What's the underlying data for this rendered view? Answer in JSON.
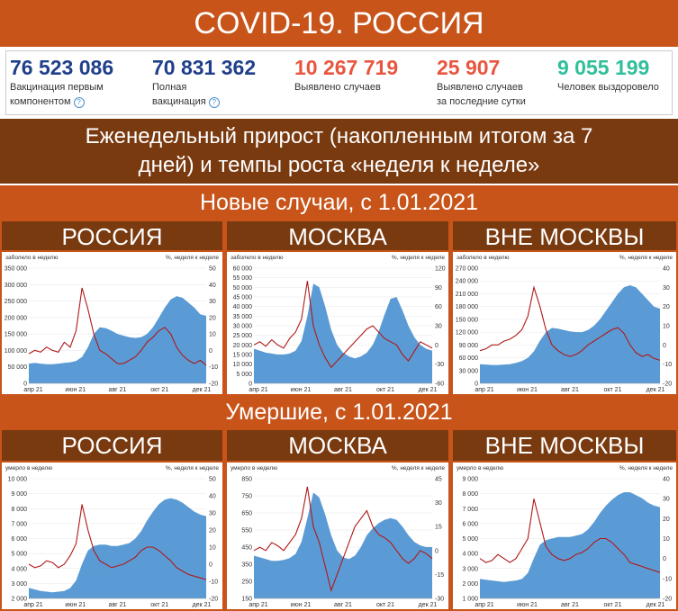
{
  "title": "COVID-19. РОССИЯ",
  "stats": [
    {
      "value": "76 523 086",
      "label1": "Вакцинация первым",
      "label2": "компонентом",
      "help": true,
      "color": "#1f3f8a"
    },
    {
      "value": "70 831 362",
      "label1": "Полная",
      "label2": "вакцинация",
      "help": true,
      "color": "#1f3f8a"
    },
    {
      "value": "10 267 719",
      "label1": "Выявлено случаев",
      "label2": "",
      "help": false,
      "color": "#e8563f"
    },
    {
      "value": "25 907",
      "label1": "Выявлено случаев",
      "label2": "за последние сутки",
      "help": false,
      "color": "#e8563f"
    },
    {
      "value": "9 055 199",
      "label1": "Человек выздоровело",
      "label2": "",
      "help": false,
      "color": "#2fbf9a"
    }
  ],
  "weekly_title_line1": "Еженедельный прирост (накопленным итогом за 7",
  "weekly_title_line2": "дней) и темпы роста «неделя к неделе»",
  "cases_title": "Новые случаи, с 1.01.2021",
  "deaths_title": "Умершие, с 1.01.2021",
  "region_labels": [
    "РОССИЯ",
    "МОСКВА",
    "ВНЕ МОСКВЫ"
  ],
  "colors": {
    "orange": "#c8541a",
    "brown": "#7a3a10",
    "area": "#5b9bd5",
    "line": "#b01818"
  },
  "chart_data": [
    {
      "type": "area",
      "id": "cases-russia",
      "left_label": "заболело в неделю",
      "right_label": "%, неделя к неделе",
      "x_ticks": [
        "апр 21",
        "июн 21",
        "авг 21",
        "окт 21",
        "дек 21"
      ],
      "ylim": [
        0,
        350000
      ],
      "y_ticks": [
        "0",
        "50 000",
        "100 000",
        "150 000",
        "200 000",
        "250 000",
        "300 000",
        "350 000"
      ],
      "y2lim": [
        -20,
        50
      ],
      "y2_ticks": [
        "-20",
        "-10",
        "0",
        "10",
        "20",
        "30",
        "40",
        "50"
      ],
      "series": [
        {
          "kind": "area",
          "values": [
            60000,
            62000,
            60000,
            58000,
            58000,
            60000,
            62000,
            64000,
            68000,
            80000,
            110000,
            150000,
            170000,
            168000,
            160000,
            150000,
            145000,
            140000,
            138000,
            140000,
            150000,
            170000,
            200000,
            230000,
            255000,
            265000,
            260000,
            245000,
            230000,
            210000,
            205000
          ]
        },
        {
          "kind": "line",
          "values": [
            -2,
            0,
            -1,
            2,
            0,
            -1,
            5,
            2,
            12,
            38,
            25,
            10,
            0,
            -2,
            -5,
            -8,
            -8,
            -6,
            -4,
            0,
            5,
            8,
            12,
            14,
            10,
            2,
            -3,
            -6,
            -8,
            -6,
            -9
          ]
        }
      ]
    },
    {
      "type": "area",
      "id": "cases-moscow",
      "left_label": "заболело в неделю",
      "right_label": "%, неделя к неделе",
      "x_ticks": [
        "апр 21",
        "июн 21",
        "авг 21",
        "окт 21",
        "дек 21"
      ],
      "ylim": [
        0,
        60000
      ],
      "y_ticks": [
        "0",
        "5 000",
        "10 000",
        "15 000",
        "20 000",
        "25 000",
        "30 000",
        "35 000",
        "40 000",
        "45 000",
        "50 000",
        "55 000",
        "60 000"
      ],
      "y2lim": [
        -60,
        120
      ],
      "y2_ticks": [
        "-60",
        "-30",
        "0",
        "30",
        "60",
        "90",
        "120"
      ],
      "series": [
        {
          "kind": "area",
          "values": [
            18000,
            17000,
            16000,
            15500,
            15000,
            15000,
            15500,
            17000,
            22000,
            35000,
            52000,
            50000,
            40000,
            28000,
            20000,
            16000,
            14000,
            13000,
            14000,
            16000,
            20000,
            27000,
            36000,
            44000,
            45000,
            38000,
            30000,
            24000,
            20000,
            18000,
            17000
          ]
        },
        {
          "kind": "line",
          "values": [
            0,
            5,
            -2,
            8,
            0,
            -5,
            10,
            20,
            40,
            100,
            30,
            0,
            -20,
            -35,
            -25,
            -15,
            -5,
            5,
            15,
            25,
            30,
            20,
            10,
            5,
            0,
            -15,
            -25,
            -10,
            5,
            0,
            -5
          ]
        }
      ]
    },
    {
      "type": "area",
      "id": "cases-outside",
      "left_label": "заболело в неделю",
      "right_label": "%, неделя к неделе",
      "x_ticks": [
        "апр 21",
        "июн 21",
        "авг 21",
        "окт 21",
        "дек 21"
      ],
      "ylim": [
        0,
        270000
      ],
      "y_ticks": [
        "0",
        "30 000",
        "60 000",
        "90 000",
        "120 000",
        "150 000",
        "180 000",
        "210 000",
        "240 000",
        "270 000"
      ],
      "y2lim": [
        -20,
        40
      ],
      "y2_ticks": [
        "-20",
        "-10",
        "0",
        "10",
        "20",
        "30",
        "40"
      ],
      "series": [
        {
          "kind": "area",
          "values": [
            45000,
            44000,
            43000,
            43000,
            44000,
            45000,
            48000,
            52000,
            60000,
            75000,
            100000,
            120000,
            130000,
            128000,
            125000,
            122000,
            120000,
            120000,
            125000,
            135000,
            150000,
            170000,
            190000,
            210000,
            225000,
            230000,
            225000,
            210000,
            195000,
            180000,
            175000
          ]
        },
        {
          "kind": "line",
          "values": [
            -3,
            -2,
            0,
            0,
            2,
            3,
            5,
            8,
            15,
            30,
            20,
            8,
            0,
            -3,
            -5,
            -6,
            -5,
            -3,
            0,
            2,
            4,
            6,
            8,
            9,
            6,
            0,
            -4,
            -6,
            -5,
            -7,
            -8
          ]
        }
      ]
    },
    {
      "type": "area",
      "id": "deaths-russia",
      "left_label": "умерло в неделю",
      "right_label": "%, неделя к неделе",
      "x_ticks": [
        "апр 21",
        "июн 21",
        "авг 21",
        "окт 21",
        "дек 21"
      ],
      "ylim": [
        2000,
        10000
      ],
      "y_ticks": [
        "2 000",
        "3 000",
        "4 000",
        "5 000",
        "6 000",
        "7 000",
        "8 000",
        "9 000",
        "10 000"
      ],
      "y2lim": [
        -20,
        50
      ],
      "y2_ticks": [
        "-20",
        "-10",
        "0",
        "10",
        "20",
        "30",
        "40",
        "50"
      ],
      "series": [
        {
          "kind": "area",
          "values": [
            2700,
            2600,
            2500,
            2450,
            2400,
            2450,
            2500,
            2700,
            3200,
            4300,
            5200,
            5500,
            5600,
            5600,
            5500,
            5500,
            5600,
            5700,
            6000,
            6500,
            7200,
            7800,
            8300,
            8600,
            8700,
            8600,
            8400,
            8100,
            7800,
            7600,
            7500
          ]
        },
        {
          "kind": "line",
          "values": [
            0,
            -2,
            -1,
            2,
            1,
            -2,
            0,
            5,
            12,
            35,
            20,
            8,
            2,
            0,
            -2,
            -1,
            0,
            2,
            4,
            8,
            10,
            10,
            8,
            5,
            2,
            -2,
            -4,
            -6,
            -7,
            -8,
            -9
          ]
        }
      ]
    },
    {
      "type": "area",
      "id": "deaths-moscow",
      "left_label": "умерло в неделю",
      "right_label": "%, неделя к неделе",
      "x_ticks": [
        "апр 21",
        "июн 21",
        "авг 21",
        "окт 21",
        "дек 21"
      ],
      "ylim": [
        150,
        850
      ],
      "y_ticks": [
        "150",
        "250",
        "350",
        "450",
        "550",
        "650",
        "750",
        "850"
      ],
      "y2lim": [
        -30,
        45
      ],
      "y2_ticks": [
        "-30",
        "-15",
        "0",
        "15",
        "30",
        "45"
      ],
      "series": [
        {
          "kind": "area",
          "values": [
            400,
            390,
            380,
            370,
            370,
            375,
            385,
            410,
            480,
            620,
            770,
            740,
            640,
            520,
            430,
            390,
            380,
            400,
            450,
            520,
            560,
            590,
            610,
            620,
            610,
            570,
            520,
            480,
            460,
            450,
            450
          ]
        },
        {
          "kind": "line",
          "values": [
            0,
            2,
            0,
            5,
            3,
            0,
            5,
            10,
            20,
            40,
            15,
            5,
            -10,
            -25,
            -15,
            -5,
            5,
            15,
            20,
            25,
            15,
            10,
            8,
            5,
            0,
            -5,
            -8,
            -5,
            0,
            -2,
            -5
          ]
        }
      ]
    },
    {
      "type": "area",
      "id": "deaths-outside",
      "left_label": "умерло в неделю",
      "right_label": "%, неделя к неделе",
      "x_ticks": [
        "апр 21",
        "июн 21",
        "авг 21",
        "окт 21",
        "дек 21"
      ],
      "ylim": [
        1000,
        9000
      ],
      "y_ticks": [
        "1 000",
        "2 000",
        "3 000",
        "4 000",
        "5 000",
        "6 000",
        "7 000",
        "8 000",
        "9 000"
      ],
      "y2lim": [
        -20,
        40
      ],
      "y2_ticks": [
        "-20",
        "-10",
        "0",
        "10",
        "20",
        "30",
        "40"
      ],
      "series": [
        {
          "kind": "area",
          "values": [
            2300,
            2250,
            2200,
            2150,
            2100,
            2150,
            2200,
            2300,
            2700,
            3700,
            4600,
            4900,
            5000,
            5100,
            5100,
            5100,
            5200,
            5300,
            5600,
            6100,
            6700,
            7200,
            7600,
            7900,
            8100,
            8100,
            7900,
            7700,
            7400,
            7200,
            7100
          ]
        },
        {
          "kind": "line",
          "values": [
            0,
            -2,
            -1,
            2,
            0,
            -2,
            0,
            5,
            10,
            30,
            18,
            6,
            2,
            0,
            -1,
            0,
            2,
            3,
            5,
            8,
            10,
            10,
            8,
            5,
            2,
            -2,
            -3,
            -4,
            -5,
            -6,
            -7
          ]
        }
      ]
    }
  ]
}
